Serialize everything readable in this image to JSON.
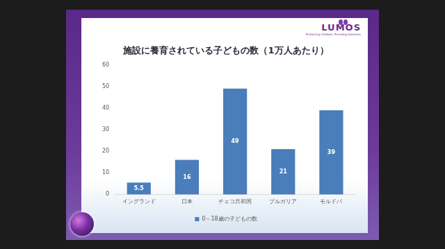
{
  "logo": {
    "name": "LUMOS",
    "tagline": "Protecting Children. Providing Solutions"
  },
  "chart_data": {
    "type": "bar",
    "title": "施設に養育されている子どもの数（1万人あたり）",
    "categories": [
      "イングランド",
      "日本",
      "チェコ共和国",
      "ブルガリア",
      "モルドバ"
    ],
    "series": [
      {
        "name": "0～18歳の子どもの数",
        "color": "#4a7ebb",
        "values": [
          5.5,
          16,
          49,
          21,
          39
        ]
      }
    ],
    "ylim": [
      0,
      60
    ],
    "yticks": [
      0,
      10,
      20,
      30,
      40,
      50,
      60
    ],
    "grid": false,
    "legend": "bottom",
    "data_labels": true
  }
}
